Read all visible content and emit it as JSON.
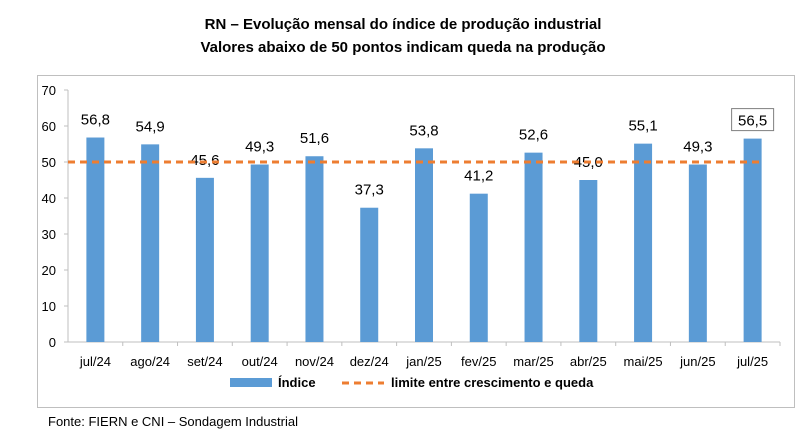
{
  "title": "RN – Evolução mensal do índice de produção industrial",
  "subtitle": "Valores abaixo de 50 pontos indicam queda na produção",
  "source": "Fonte: FIERN e CNI – Sondagem Industrial",
  "chart_data": {
    "type": "bar",
    "categories": [
      "jul/24",
      "ago/24",
      "set/24",
      "out/24",
      "nov/24",
      "dez/24",
      "jan/25",
      "fev/25",
      "mar/25",
      "abr/25",
      "mai/25",
      "jun/25",
      "jul/25"
    ],
    "series": [
      {
        "name": "Índice",
        "values": [
          56.8,
          54.9,
          45.6,
          49.3,
          51.6,
          37.3,
          53.8,
          41.2,
          52.6,
          45.0,
          55.1,
          49.3,
          56.5
        ],
        "labels": [
          "56,8",
          "54,9",
          "45,6",
          "49,3",
          "51,6",
          "37,3",
          "53,8",
          "41,2",
          "52,6",
          "45,0",
          "55,1",
          "49,3",
          "56,5"
        ],
        "color": "#5b9bd5"
      },
      {
        "name": "limite entre crescimento e queda",
        "type": "line",
        "value": 50,
        "color": "#ed7d31",
        "style": "dashed"
      }
    ],
    "ylim": [
      0,
      70
    ],
    "yticks": [
      0,
      10,
      20,
      30,
      40,
      50,
      60,
      70
    ],
    "grid": false,
    "legend_position": "bottom",
    "highlighted_label": "56,5"
  }
}
